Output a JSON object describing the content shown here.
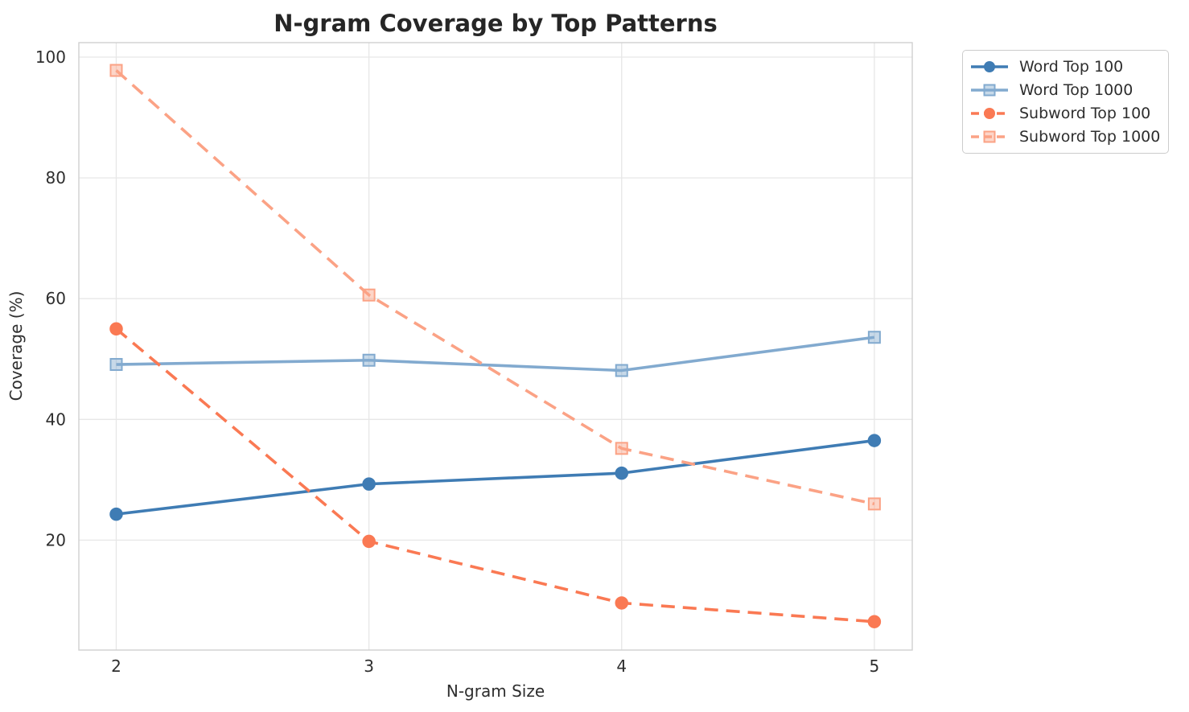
{
  "title": "N-gram Coverage by Top Patterns",
  "colors": {
    "word_top_100": "#3f7cb4",
    "word_top_1000": "#82aacf",
    "subword_top_100": "#fa7953",
    "subword_top_1000": "#fba285",
    "gridline": "#e7e7e7",
    "spine": "#d0d0d0",
    "text": "#262626",
    "legend_border": "#cccccc",
    "background": "#ffffff"
  },
  "chart_data": {
    "type": "line",
    "title": "N-gram Coverage by Top Patterns",
    "xlabel": "N-gram Size",
    "ylabel": "Coverage (%)",
    "x": [
      2,
      3,
      4,
      5
    ],
    "xticks": [
      "2",
      "3",
      "4",
      "5"
    ],
    "yticks": [
      "20",
      "40",
      "60",
      "80",
      "100"
    ],
    "ytick_values": [
      20,
      40,
      60,
      80,
      100
    ],
    "xlim": [
      1.852,
      5.15
    ],
    "ylim": [
      1.8,
      102.4
    ],
    "grid": true,
    "legend_position": "outside-top-right",
    "series": [
      {
        "name": "Word Top 100",
        "values": [
          24.3,
          29.3,
          31.1,
          36.5
        ],
        "color": "#3f7cb4",
        "dash": "solid",
        "marker": "circle"
      },
      {
        "name": "Word Top 1000",
        "values": [
          49.1,
          49.8,
          48.1,
          53.6
        ],
        "color": "#82aacf",
        "dash": "solid",
        "marker": "square"
      },
      {
        "name": "Subword Top 100",
        "values": [
          55.0,
          19.8,
          9.6,
          6.5
        ],
        "color": "#fa7953",
        "dash": "dashed",
        "marker": "circle"
      },
      {
        "name": "Subword Top 1000",
        "values": [
          97.8,
          60.6,
          35.2,
          26.0
        ],
        "color": "#fba285",
        "dash": "dashed",
        "marker": "square"
      }
    ]
  }
}
